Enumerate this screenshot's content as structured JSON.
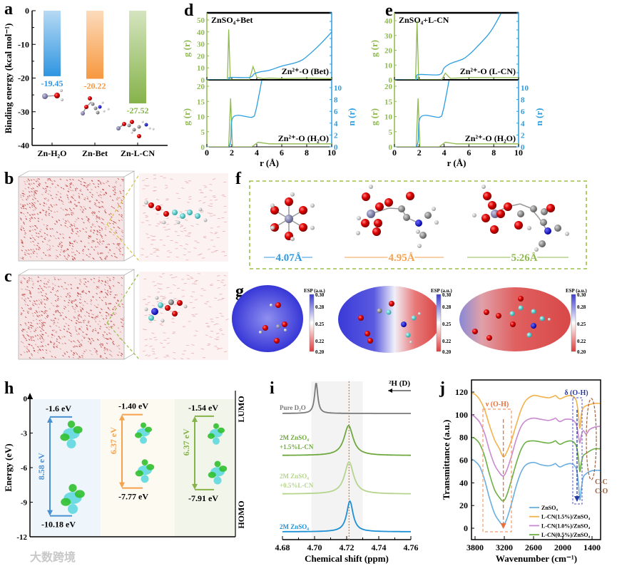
{
  "panel_labels": {
    "a": "a",
    "b": "b",
    "c": "c",
    "d": "d",
    "e": "e",
    "f": "f",
    "g": "g",
    "h": "h",
    "i": "i",
    "j": "j"
  },
  "watermark": "大数跨境",
  "panel_f": {
    "distances": [
      "4.07Å",
      "4.95Å",
      "5.26Å"
    ],
    "colors": [
      "#2f9ae0",
      "#f5a14e",
      "#8fba4f"
    ]
  },
  "panel_g": {
    "colorbar_title": "ESP (a.u.)",
    "ticks": [
      "0.30",
      "0.28",
      "0.25",
      "0.22",
      "0.20"
    ]
  },
  "chart_data": [
    {
      "type": "bar",
      "categories": [
        "Zn-H₂O",
        "Zn-Bet",
        "Zn-L-CN"
      ],
      "values": [
        -19.45,
        -20.22,
        -27.52
      ],
      "value_labels": [
        "-19.45",
        "-20.22",
        "-27.52"
      ],
      "colors": [
        "#2f95e0",
        "#f7983f",
        "#86b34a"
      ],
      "ylabel": "Binding energy (kcal mol⁻¹)",
      "ylim": [
        -40,
        0
      ],
      "yticks": [
        "0",
        "-10",
        "-20",
        "-30",
        "-40"
      ]
    },
    {
      "type": "line",
      "title": "ZnSO₄+Bet",
      "xlabel": "r (Å)",
      "xlim": [
        0,
        10
      ],
      "xticks": [
        "0",
        "2",
        "4",
        "6",
        "8",
        "10"
      ],
      "colors": {
        "g": "#8fba4f",
        "n": "#2a9de0"
      },
      "top": {
        "label": "Zn²⁺-O (Bet)",
        "ylabel": "g (r)",
        "ylim": [
          0,
          55
        ],
        "yticks": [
          "0",
          "10",
          "20",
          "30",
          "40",
          "50"
        ],
        "g": [
          [
            0,
            0
          ],
          [
            1.65,
            0
          ],
          [
            1.75,
            42
          ],
          [
            1.88,
            0
          ],
          [
            3.4,
            0
          ],
          [
            3.7,
            11
          ],
          [
            4.0,
            2
          ],
          [
            4.5,
            1
          ],
          [
            5,
            1.5
          ],
          [
            6,
            1
          ],
          [
            8,
            1.5
          ],
          [
            10,
            1
          ]
        ],
        "n": [
          [
            0,
            0
          ],
          [
            1.7,
            0
          ],
          [
            1.85,
            2
          ],
          [
            3.4,
            2
          ],
          [
            3.8,
            5
          ],
          [
            4.2,
            6.5
          ],
          [
            5,
            8
          ],
          [
            6,
            11.5
          ],
          [
            7,
            14
          ],
          [
            7.7,
            17
          ],
          [
            8.5,
            24
          ],
          [
            9.2,
            31
          ],
          [
            10,
            40
          ]
        ]
      },
      "bottom": {
        "label": "Zn²⁺-O (H₂O)",
        "ylabel": "g (r)",
        "ylim": [
          0,
          22
        ],
        "yticks": [
          "0",
          "5",
          "10",
          "15",
          "20"
        ],
        "y2label": "n (r)",
        "y2lim": [
          0,
          11
        ],
        "y2ticks": [
          "0",
          "2",
          "4",
          "6",
          "8",
          "10"
        ],
        "g": [
          [
            0,
            0
          ],
          [
            1.75,
            0
          ],
          [
            1.9,
            16
          ],
          [
            2.05,
            0
          ],
          [
            3.6,
            0
          ],
          [
            4.1,
            1.5
          ],
          [
            5,
            1
          ],
          [
            10,
            1
          ]
        ],
        "n": [
          [
            0,
            0
          ],
          [
            1.75,
            0
          ],
          [
            2.1,
            5
          ],
          [
            3.6,
            5
          ],
          [
            3.9,
            6
          ],
          [
            4.2,
            9
          ],
          [
            4.4,
            11.3
          ]
        ]
      }
    },
    {
      "type": "line",
      "title": "ZnSO₄+L-CN",
      "xlabel": "r (Å)",
      "xlim": [
        0,
        10
      ],
      "xticks": [
        "0",
        "2",
        "4",
        "6",
        "8",
        "10"
      ],
      "colors": {
        "g": "#8fba4f",
        "n": "#2a9de0"
      },
      "top": {
        "label": "Zn²⁺-O (L-CN)",
        "ylabel": "g (r)",
        "ylim": [
          0,
          45
        ],
        "yticks": [
          "0",
          "10",
          "20",
          "30",
          "40"
        ],
        "g": [
          [
            0,
            0
          ],
          [
            1.7,
            0
          ],
          [
            1.82,
            40
          ],
          [
            1.95,
            0
          ],
          [
            3.8,
            0
          ],
          [
            4.1,
            4.5
          ],
          [
            4.5,
            1
          ],
          [
            6,
            1.5
          ],
          [
            10,
            1.5
          ]
        ],
        "n": [
          [
            0,
            0
          ],
          [
            1.7,
            0
          ],
          [
            1.9,
            3.5
          ],
          [
            3.6,
            3.5
          ],
          [
            4.0,
            8
          ],
          [
            4.5,
            11
          ],
          [
            5.5,
            14
          ],
          [
            6,
            17
          ],
          [
            6.5,
            21
          ],
          [
            7.5,
            30
          ],
          [
            8,
            36
          ],
          [
            8.6,
            45
          ]
        ]
      },
      "bottom": {
        "label": "Zn²⁺-O (H₂O)",
        "ylabel": "g (r)",
        "ylim": [
          0,
          22
        ],
        "yticks": [
          "0",
          "5",
          "10",
          "15",
          "20"
        ],
        "y2label": "n (r)",
        "y2lim": [
          0,
          11
        ],
        "y2ticks": [
          "0",
          "2",
          "4",
          "6",
          "8",
          "10"
        ],
        "g": [
          [
            0,
            0
          ],
          [
            1.75,
            0
          ],
          [
            1.9,
            16
          ],
          [
            2.05,
            0
          ],
          [
            3.6,
            0
          ],
          [
            4.1,
            1.5
          ],
          [
            5,
            1
          ],
          [
            10,
            1
          ]
        ],
        "n": [
          [
            0,
            0
          ],
          [
            1.75,
            0
          ],
          [
            2.1,
            5
          ],
          [
            3.6,
            5
          ],
          [
            3.9,
            6
          ],
          [
            4.2,
            9
          ],
          [
            4.4,
            11.3
          ]
        ]
      }
    },
    {
      "type": "energy-level",
      "ylabel": "Energy (eV)",
      "ylim": [
        -12,
        0
      ],
      "yticks": [
        "0",
        "-3",
        "-6",
        "-9",
        "-12"
      ],
      "lumo_label": "LUMO",
      "homo_label": "HOMO",
      "systems": [
        {
          "lumo": -1.6,
          "homo": -10.18,
          "lumo_label": "-1.6 eV",
          "homo_label": "-10.18 eV",
          "gap_label": "8.58 eV",
          "color": "#4a90d0",
          "band": "#eef6fc"
        },
        {
          "lumo": -1.4,
          "homo": -7.77,
          "lumo_label": "-1.40 eV",
          "homo_label": "-7.77 eV",
          "gap_label": "6.37 eV",
          "color": "#f5a14e",
          "band": "#fdfaf1"
        },
        {
          "lumo": -1.54,
          "homo": -7.91,
          "lumo_label": "-1.54 eV",
          "homo_label": "-7.91 eV",
          "gap_label": "6.37 eV",
          "color": "#86b34a",
          "band": "#f1f5ea"
        }
      ]
    },
    {
      "type": "line",
      "xlabel": "Chemical shift (ppm)",
      "xlim": [
        4.68,
        4.76
      ],
      "xticks": [
        "4.68",
        "4.70",
        "4.72",
        "4.74",
        "4.76"
      ],
      "arrow_label": "²H (D)",
      "reference_line": 4.7215,
      "shaded_range": [
        4.698,
        4.73
      ],
      "series": [
        {
          "name": "Pure D₂O",
          "label_lines": [
            "Pure D₂O"
          ],
          "center": 4.701,
          "hwhm": 0.0012,
          "color": "#7a7a7a"
        },
        {
          "name": "2M ZnSO₄ +1.5%L-CN",
          "label_lines": [
            "2M ZnSO₄",
            "+1.5%L-CN"
          ],
          "center": 4.7212,
          "hwhm": 0.0034,
          "color": "#6fa83e"
        },
        {
          "name": "2M ZnSO₄ +0.5%L-CN",
          "label_lines": [
            "2M ZnSO₄",
            "+0.5%L-CN"
          ],
          "center": 4.7215,
          "hwhm": 0.0034,
          "color": "#b5d48e"
        },
        {
          "name": "2M ZnSO₄",
          "label_lines": [
            "2M ZnSO₄"
          ],
          "center": 4.722,
          "hwhm": 0.0024,
          "color": "#1f8fd6"
        }
      ]
    },
    {
      "type": "line",
      "xlabel": "Wavenumber (cm⁻¹)",
      "ylabel": "Transmittance (a.u.)",
      "xlim": [
        3870,
        1220
      ],
      "ylim": [
        -10,
        131
      ],
      "xticks": [
        "3800",
        "3200",
        "2600",
        "2000",
        "1400"
      ],
      "yticks": [
        "0",
        "20",
        "40",
        "60",
        "80",
        "100",
        "120"
      ],
      "annotations": {
        "oh_stretch": "ν (O-H)",
        "oh_bend": "δ (O-H)",
        "cc": "C-C",
        "co": "C-O"
      },
      "x": [
        3870,
        3800,
        3700,
        3600,
        3500,
        3400,
        3300,
        3220,
        3150,
        3050,
        2950,
        2850,
        2750,
        2600,
        2450,
        2300,
        2200,
        2150,
        2100,
        2050,
        1950,
        1850,
        1780,
        1720,
        1680,
        1650,
        1620,
        1580,
        1520,
        1450,
        1350,
        1220
      ],
      "series": [
        {
          "name": "ZnSO₄",
          "color": "#6aaee0",
          "values": [
            61,
            59,
            54,
            42,
            26,
            13,
            6,
            3,
            8,
            22,
            38,
            50,
            56,
            58,
            56,
            55,
            56,
            57,
            55,
            54,
            56,
            57,
            56,
            52,
            40,
            25,
            35,
            45,
            48,
            50,
            51,
            51
          ]
        },
        {
          "name": "L-CN(1.5%)/ZnSO₄",
          "color": "#f2b24a",
          "values": [
            119,
            118,
            113,
            104,
            90,
            78,
            70,
            63,
            67,
            78,
            92,
            105,
            113,
            117,
            116,
            115,
            116,
            117,
            115,
            114,
            116,
            117,
            116,
            112,
            100,
            88,
            100,
            106,
            108,
            109,
            110,
            110
          ]
        },
        {
          "name": "L-CN(1.0%)/ZnSO₄",
          "color": "#c98ad0",
          "values": [
            100,
            98,
            93,
            83,
            68,
            56,
            49,
            46,
            51,
            64,
            79,
            90,
            95,
            97,
            96,
            95,
            96,
            97,
            95,
            94,
            96,
            96,
            95,
            91,
            82,
            75,
            82,
            86,
            83,
            87,
            89,
            90
          ]
        },
        {
          "name": "L-CN(0.5%)/ZnSO₄",
          "color": "#6cb044",
          "values": [
            80,
            79,
            74,
            63,
            47,
            34,
            27,
            24,
            29,
            43,
            58,
            70,
            76,
            77,
            76,
            75,
            76,
            77,
            75,
            74,
            76,
            77,
            76,
            72,
            62,
            50,
            58,
            64,
            66,
            68,
            70,
            70
          ]
        }
      ]
    }
  ]
}
